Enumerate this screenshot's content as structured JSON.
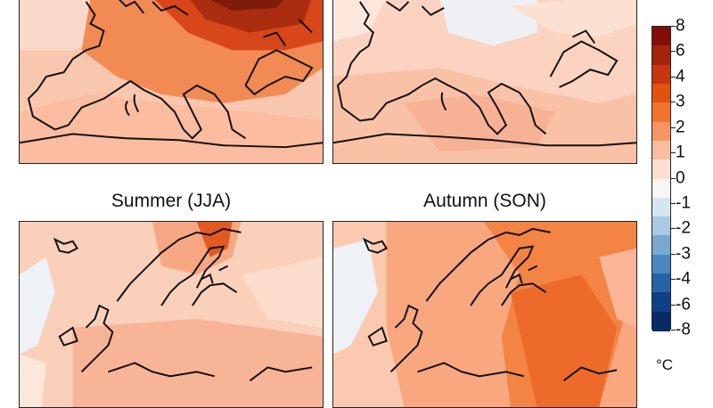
{
  "panels": {
    "top_left_title": "",
    "top_right_title": "",
    "bottom_left_title": "Summer (JJA)",
    "bottom_right_title": "Autumn (SON)"
  },
  "colorbar": {
    "ticks": [
      "8",
      "6",
      "4",
      "3",
      "2",
      "1",
      "0",
      "-1",
      "-2",
      "-3",
      "-4",
      "-6",
      "-8"
    ],
    "unit": "°C",
    "colors": [
      "#7f0f08",
      "#a5230c",
      "#c8360f",
      "#e2520f",
      "#f2732e",
      "#f79664",
      "#fbbd9f",
      "#fde0d0",
      "#f6f6f6",
      "#d7e5f0",
      "#aac9e2",
      "#78a9d2",
      "#4b86bf",
      "#2762a5",
      "#0f3f85",
      "#082b63"
    ]
  }
}
